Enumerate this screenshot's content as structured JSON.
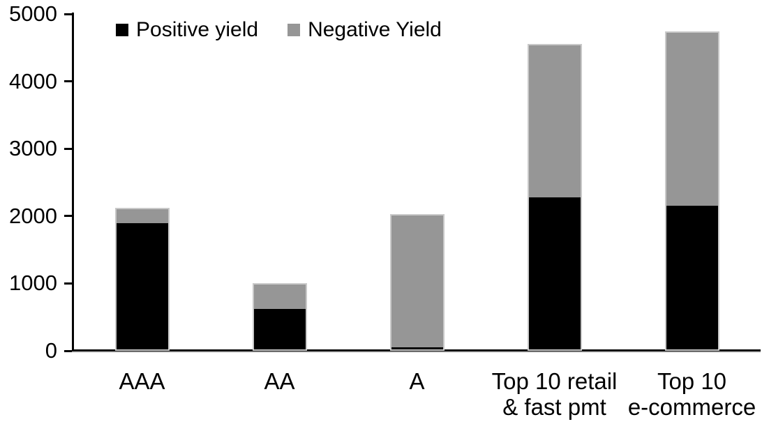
{
  "chart_data": {
    "type": "bar",
    "stacked": true,
    "title": "",
    "xlabel": "",
    "ylabel": "",
    "categories": [
      "AAA",
      "AA",
      "A",
      "Top 10 retail & fast pmt",
      "Top 10 e-commerce"
    ],
    "category_display_lines": [
      [
        "AAA"
      ],
      [
        "AA"
      ],
      [
        "A"
      ],
      [
        "Top 10 retail",
        "& fast pmt"
      ],
      [
        "Top 10",
        "e-commerce"
      ]
    ],
    "series": [
      {
        "name": "Positive yield",
        "color": "#000000",
        "values": [
          1890,
          625,
          50,
          2280,
          2150
        ]
      },
      {
        "name": "Negative Yield",
        "color": "#969696",
        "values": [
          230,
          375,
          1980,
          2270,
          2590
        ]
      }
    ],
    "totals": [
      2120,
      1000,
      2030,
      4550,
      4740
    ],
    "ylim": [
      0,
      5000
    ],
    "yticks": [
      0,
      1000,
      2000,
      3000,
      4000,
      5000
    ],
    "grid": false,
    "legend_position": "top-left",
    "colors": {
      "axis": "#000000",
      "background": "#ffffff",
      "bar_border": "#c9c9c9"
    }
  }
}
